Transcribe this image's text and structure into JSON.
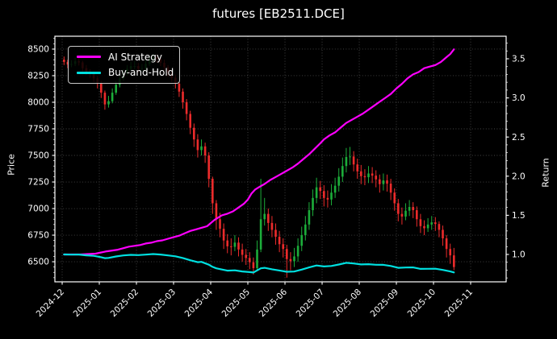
{
  "chart_data": {
    "type": "candlestick+line",
    "title": "futures [EB2511.DCE]",
    "legend": [
      {
        "label": "AI Strategy",
        "color": "#ff00ff"
      },
      {
        "label": "Buy-and-Hold",
        "color": "#00e0e0"
      }
    ],
    "colors": {
      "background": "#000000",
      "up_candle": "#1cad3a",
      "down_candle": "#ec2b2b",
      "ai_strategy": "#ff00ff",
      "buy_and_hold": "#00e0e0",
      "grid": "#474747",
      "spine": "#ffffff",
      "text": "#ffffff"
    },
    "x_axis": {
      "tick_labels": [
        "2024-12",
        "2025-01",
        "2025-02",
        "2025-03",
        "2025-04",
        "2025-05",
        "2025-06",
        "2025-07",
        "2025-08",
        "2025-09",
        "2025-10",
        "2025-11"
      ],
      "range_months": [
        -0.196,
        11.956
      ],
      "label_rotation_deg": 45
    },
    "price_axis": {
      "label": "Price",
      "ticks": [
        6500,
        6750,
        7000,
        7250,
        7500,
        7750,
        8000,
        8250,
        8500
      ],
      "range": [
        6311,
        8621
      ],
      "grid": true
    },
    "return_axis": {
      "label": "Return",
      "ticks": [
        1.0,
        1.5,
        2.0,
        2.5,
        3.0,
        3.5
      ],
      "range": [
        0.65,
        3.788
      ],
      "grid": false
    },
    "candles_format": [
      "month_pos",
      "open",
      "high",
      "low",
      "close"
    ],
    "candles": [
      [
        0.05,
        8400,
        8430,
        8350,
        8380
      ],
      [
        0.15,
        8380,
        8400,
        8320,
        8355
      ],
      [
        0.25,
        8355,
        8395,
        8330,
        8360
      ],
      [
        0.35,
        8360,
        8420,
        8340,
        8385
      ],
      [
        0.45,
        8385,
        8415,
        8345,
        8375
      ],
      [
        0.55,
        8375,
        8390,
        8290,
        8320
      ],
      [
        0.65,
        8320,
        8350,
        8260,
        8290
      ],
      [
        0.75,
        8290,
        8310,
        8230,
        8265
      ],
      [
        0.85,
        8265,
        8290,
        8190,
        8225
      ],
      [
        0.95,
        8225,
        8250,
        8130,
        8175
      ],
      [
        1.05,
        8175,
        8200,
        8040,
        8090
      ],
      [
        1.15,
        8090,
        8110,
        7930,
        7980
      ],
      [
        1.25,
        7980,
        8060,
        7950,
        8010
      ],
      [
        1.35,
        8010,
        8130,
        7990,
        8090
      ],
      [
        1.45,
        8090,
        8200,
        8070,
        8165
      ],
      [
        1.55,
        8165,
        8260,
        8140,
        8225
      ],
      [
        1.65,
        8225,
        8310,
        8200,
        8275
      ],
      [
        1.75,
        8275,
        8350,
        8250,
        8315
      ],
      [
        1.85,
        8315,
        8380,
        8300,
        8340
      ],
      [
        1.95,
        8340,
        8390,
        8310,
        8340
      ],
      [
        2.05,
        8340,
        8370,
        8280,
        8315
      ],
      [
        2.15,
        8315,
        8360,
        8290,
        8320
      ],
      [
        2.25,
        8320,
        8400,
        8300,
        8360
      ],
      [
        2.35,
        8360,
        8440,
        8340,
        8400
      ],
      [
        2.45,
        8400,
        8455,
        8380,
        8425
      ],
      [
        2.55,
        8425,
        8450,
        8370,
        8410
      ],
      [
        2.65,
        8410,
        8430,
        8340,
        8370
      ],
      [
        2.75,
        8370,
        8400,
        8300,
        8330
      ],
      [
        2.85,
        8330,
        8350,
        8240,
        8275
      ],
      [
        2.95,
        8275,
        8300,
        8190,
        8230
      ],
      [
        3.05,
        8230,
        8260,
        8130,
        8175
      ],
      [
        3.15,
        8175,
        8200,
        8050,
        8100
      ],
      [
        3.25,
        8100,
        8130,
        7940,
        8000
      ],
      [
        3.35,
        8000,
        8030,
        7830,
        7890
      ],
      [
        3.45,
        7890,
        7920,
        7700,
        7760
      ],
      [
        3.55,
        7760,
        7800,
        7580,
        7650
      ],
      [
        3.65,
        7650,
        7700,
        7480,
        7550
      ],
      [
        3.75,
        7550,
        7650,
        7500,
        7585
      ],
      [
        3.85,
        7585,
        7620,
        7430,
        7500
      ],
      [
        3.95,
        7500,
        7530,
        7200,
        7280
      ],
      [
        4.05,
        7280,
        7300,
        6950,
        7050
      ],
      [
        4.15,
        7050,
        7080,
        6800,
        6900
      ],
      [
        4.25,
        6900,
        6960,
        6730,
        6810
      ],
      [
        4.35,
        6810,
        6860,
        6620,
        6700
      ],
      [
        4.45,
        6700,
        6760,
        6580,
        6645
      ],
      [
        4.55,
        6645,
        6720,
        6560,
        6640
      ],
      [
        4.65,
        6640,
        6750,
        6600,
        6680
      ],
      [
        4.75,
        6680,
        6730,
        6550,
        6615
      ],
      [
        4.85,
        6615,
        6670,
        6500,
        6565
      ],
      [
        4.95,
        6565,
        6620,
        6470,
        6535
      ],
      [
        5.05,
        6535,
        6590,
        6430,
        6495
      ],
      [
        5.15,
        6495,
        6540,
        6380,
        6440
      ],
      [
        5.25,
        6440,
        6700,
        6410,
        6615
      ],
      [
        5.35,
        6615,
        7280,
        6590,
        6900
      ],
      [
        5.45,
        6900,
        7100,
        6840,
        6950
      ],
      [
        5.55,
        6950,
        7000,
        6790,
        6865
      ],
      [
        5.65,
        6865,
        6930,
        6730,
        6800
      ],
      [
        5.75,
        6800,
        6860,
        6660,
        6735
      ],
      [
        5.85,
        6735,
        6790,
        6590,
        6665
      ],
      [
        5.95,
        6665,
        6720,
        6540,
        6620
      ],
      [
        6.05,
        6620,
        6660,
        6350,
        6525
      ],
      [
        6.15,
        6525,
        6590,
        6420,
        6505
      ],
      [
        6.25,
        6505,
        6630,
        6450,
        6550
      ],
      [
        6.35,
        6550,
        6720,
        6500,
        6650
      ],
      [
        6.45,
        6650,
        6830,
        6600,
        6750
      ],
      [
        6.55,
        6750,
        6930,
        6700,
        6850
      ],
      [
        6.65,
        6850,
        7060,
        6800,
        6985
      ],
      [
        6.75,
        6985,
        7180,
        6930,
        7100
      ],
      [
        6.85,
        7100,
        7290,
        7050,
        7200
      ],
      [
        6.95,
        7200,
        7260,
        7090,
        7165
      ],
      [
        7.05,
        7165,
        7220,
        7020,
        7100
      ],
      [
        7.15,
        7100,
        7170,
        7010,
        7085
      ],
      [
        7.25,
        7085,
        7230,
        7030,
        7150
      ],
      [
        7.35,
        7150,
        7290,
        7100,
        7215
      ],
      [
        7.45,
        7215,
        7380,
        7160,
        7300
      ],
      [
        7.55,
        7300,
        7480,
        7250,
        7400
      ],
      [
        7.65,
        7400,
        7570,
        7340,
        7485
      ],
      [
        7.75,
        7485,
        7580,
        7410,
        7490
      ],
      [
        7.85,
        7490,
        7540,
        7350,
        7415
      ],
      [
        7.95,
        7415,
        7470,
        7280,
        7350
      ],
      [
        8.05,
        7350,
        7410,
        7230,
        7305
      ],
      [
        8.15,
        7305,
        7370,
        7220,
        7295
      ],
      [
        8.25,
        7295,
        7400,
        7240,
        7330
      ],
      [
        8.35,
        7330,
        7390,
        7240,
        7310
      ],
      [
        8.45,
        7310,
        7360,
        7200,
        7275
      ],
      [
        8.55,
        7275,
        7320,
        7150,
        7230
      ],
      [
        8.65,
        7230,
        7330,
        7170,
        7265
      ],
      [
        8.75,
        7265,
        7320,
        7160,
        7235
      ],
      [
        8.85,
        7235,
        7280,
        7080,
        7150
      ],
      [
        8.95,
        7150,
        7190,
        6980,
        7050
      ],
      [
        9.05,
        7050,
        7090,
        6880,
        6950
      ],
      [
        9.15,
        6950,
        7010,
        6850,
        6925
      ],
      [
        9.25,
        6925,
        7050,
        6890,
        6980
      ],
      [
        9.35,
        6980,
        7080,
        6930,
        7015
      ],
      [
        9.45,
        7015,
        7060,
        6910,
        6985
      ],
      [
        9.55,
        6985,
        7020,
        6830,
        6900
      ],
      [
        9.65,
        6900,
        6950,
        6770,
        6835
      ],
      [
        9.75,
        6835,
        6890,
        6750,
        6815
      ],
      [
        9.85,
        6815,
        6910,
        6780,
        6850
      ],
      [
        9.95,
        6850,
        6930,
        6800,
        6870
      ],
      [
        10.05,
        6870,
        6920,
        6790,
        6855
      ],
      [
        10.15,
        6855,
        6880,
        6730,
        6800
      ],
      [
        10.25,
        6800,
        6840,
        6650,
        6720
      ],
      [
        10.35,
        6720,
        6750,
        6540,
        6620
      ],
      [
        10.45,
        6620,
        6670,
        6480,
        6560
      ],
      [
        10.55,
        6560,
        6630,
        6420,
        6450
      ]
    ],
    "series": [
      {
        "name": "AI Strategy",
        "axis": "return",
        "color": "#ff00ff",
        "width": 2.2,
        "points": [
          [
            0.05,
            1.0
          ],
          [
            0.3,
            1.0
          ],
          [
            0.5,
            1.0
          ],
          [
            0.7,
            1.005
          ],
          [
            0.9,
            1.01
          ],
          [
            1.0,
            1.02
          ],
          [
            1.1,
            1.03
          ],
          [
            1.2,
            1.04
          ],
          [
            1.35,
            1.05
          ],
          [
            1.5,
            1.06
          ],
          [
            1.65,
            1.08
          ],
          [
            1.8,
            1.1
          ],
          [
            1.95,
            1.11
          ],
          [
            2.1,
            1.12
          ],
          [
            2.25,
            1.14
          ],
          [
            2.4,
            1.15
          ],
          [
            2.55,
            1.17
          ],
          [
            2.7,
            1.18
          ],
          [
            2.85,
            1.2
          ],
          [
            3.0,
            1.22
          ],
          [
            3.15,
            1.24
          ],
          [
            3.3,
            1.27
          ],
          [
            3.45,
            1.3
          ],
          [
            3.6,
            1.32
          ],
          [
            3.75,
            1.34
          ],
          [
            3.9,
            1.36
          ],
          [
            4.0,
            1.4
          ],
          [
            4.1,
            1.44
          ],
          [
            4.2,
            1.47
          ],
          [
            4.3,
            1.5
          ],
          [
            4.45,
            1.52
          ],
          [
            4.6,
            1.55
          ],
          [
            4.75,
            1.6
          ],
          [
            4.9,
            1.65
          ],
          [
            5.0,
            1.7
          ],
          [
            5.1,
            1.78
          ],
          [
            5.2,
            1.83
          ],
          [
            5.3,
            1.86
          ],
          [
            5.45,
            1.9
          ],
          [
            5.6,
            1.95
          ],
          [
            5.75,
            1.99
          ],
          [
            5.9,
            2.03
          ],
          [
            6.05,
            2.07
          ],
          [
            6.2,
            2.11
          ],
          [
            6.35,
            2.16
          ],
          [
            6.5,
            2.22
          ],
          [
            6.65,
            2.28
          ],
          [
            6.8,
            2.35
          ],
          [
            6.95,
            2.42
          ],
          [
            7.05,
            2.47
          ],
          [
            7.2,
            2.52
          ],
          [
            7.35,
            2.56
          ],
          [
            7.5,
            2.62
          ],
          [
            7.65,
            2.68
          ],
          [
            7.8,
            2.72
          ],
          [
            7.95,
            2.76
          ],
          [
            8.1,
            2.8
          ],
          [
            8.25,
            2.85
          ],
          [
            8.4,
            2.9
          ],
          [
            8.55,
            2.95
          ],
          [
            8.7,
            3.0
          ],
          [
            8.85,
            3.05
          ],
          [
            9.0,
            3.12
          ],
          [
            9.15,
            3.18
          ],
          [
            9.3,
            3.25
          ],
          [
            9.45,
            3.3
          ],
          [
            9.6,
            3.33
          ],
          [
            9.75,
            3.38
          ],
          [
            9.9,
            3.4
          ],
          [
            10.05,
            3.42
          ],
          [
            10.2,
            3.46
          ],
          [
            10.35,
            3.52
          ],
          [
            10.45,
            3.56
          ],
          [
            10.55,
            3.62
          ]
        ]
      },
      {
        "name": "Buy-and-Hold",
        "axis": "return",
        "color": "#00e0e0",
        "width": 2.2,
        "points": [
          [
            0.05,
            1.0
          ],
          [
            0.25,
            0.998
          ],
          [
            0.45,
            0.999
          ],
          [
            0.65,
            0.989
          ],
          [
            0.85,
            0.982
          ],
          [
            1.05,
            0.965
          ],
          [
            1.15,
            0.952
          ],
          [
            1.25,
            0.956
          ],
          [
            1.45,
            0.974
          ],
          [
            1.65,
            0.987
          ],
          [
            1.85,
            0.995
          ],
          [
            2.05,
            0.992
          ],
          [
            2.25,
            0.998
          ],
          [
            2.45,
            1.005
          ],
          [
            2.65,
            0.999
          ],
          [
            2.85,
            0.987
          ],
          [
            3.05,
            0.976
          ],
          [
            3.25,
            0.955
          ],
          [
            3.45,
            0.926
          ],
          [
            3.65,
            0.901
          ],
          [
            3.75,
            0.905
          ],
          [
            3.95,
            0.869
          ],
          [
            4.05,
            0.841
          ],
          [
            4.15,
            0.823
          ],
          [
            4.25,
            0.813
          ],
          [
            4.45,
            0.793
          ],
          [
            4.65,
            0.797
          ],
          [
            4.85,
            0.783
          ],
          [
            5.05,
            0.775
          ],
          [
            5.15,
            0.769
          ],
          [
            5.35,
            0.823
          ],
          [
            5.45,
            0.829
          ],
          [
            5.65,
            0.811
          ],
          [
            5.85,
            0.795
          ],
          [
            6.05,
            0.779
          ],
          [
            6.25,
            0.782
          ],
          [
            6.45,
            0.806
          ],
          [
            6.65,
            0.834
          ],
          [
            6.85,
            0.859
          ],
          [
            7.05,
            0.847
          ],
          [
            7.25,
            0.853
          ],
          [
            7.45,
            0.871
          ],
          [
            7.65,
            0.893
          ],
          [
            7.85,
            0.885
          ],
          [
            8.05,
            0.872
          ],
          [
            8.25,
            0.875
          ],
          [
            8.45,
            0.868
          ],
          [
            8.65,
            0.867
          ],
          [
            8.85,
            0.853
          ],
          [
            9.05,
            0.829
          ],
          [
            9.25,
            0.833
          ],
          [
            9.45,
            0.834
          ],
          [
            9.65,
            0.816
          ],
          [
            9.85,
            0.817
          ],
          [
            10.05,
            0.818
          ],
          [
            10.25,
            0.802
          ],
          [
            10.45,
            0.783
          ],
          [
            10.55,
            0.77
          ]
        ]
      }
    ]
  }
}
